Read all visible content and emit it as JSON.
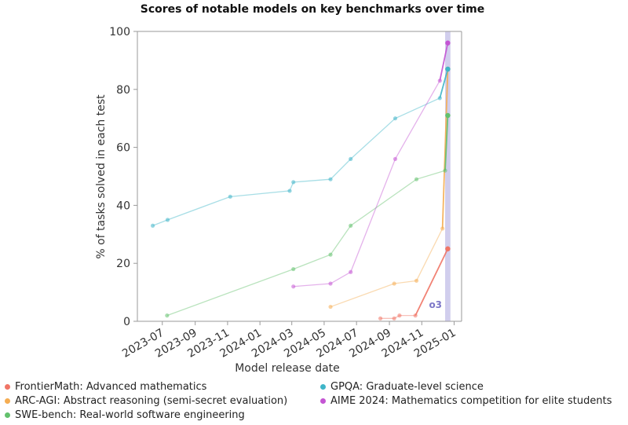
{
  "chart_data": {
    "type": "line",
    "title": "Scores of notable models on key benchmarks over time",
    "xlabel": "Model release date",
    "ylabel": "% of tasks solved in each test",
    "ylim": [
      0,
      100
    ],
    "yticks": [
      0,
      20,
      40,
      60,
      80,
      100
    ],
    "xlim": [
      "2023-05-15",
      "2025-01-15"
    ],
    "xticks": [
      "2023-07",
      "2023-09",
      "2023-11",
      "2024-01",
      "2024-03",
      "2024-05",
      "2024-07",
      "2024-09",
      "2024-11",
      "2025-01"
    ],
    "grid": false,
    "legend_position": "bottom",
    "highlight_band": {
      "x": [
        "2024-12-15",
        "2024-12-25"
      ],
      "label": "o3"
    },
    "series": [
      {
        "name": "FrontierMath: Advanced mathematics",
        "color": "#f07566",
        "x": [
          "2024-08-15",
          "2024-09-10",
          "2024-09-20",
          "2024-10-20",
          "2024-12-20"
        ],
        "y": [
          1,
          1,
          2,
          2,
          25
        ]
      },
      {
        "name": "ARC-AGI: Abstract reasoning (semi-secret evaluation)",
        "color": "#f5ad52",
        "x": [
          "2024-05-13",
          "2024-09-10",
          "2024-10-22",
          "2024-12-10",
          "2024-12-20"
        ],
        "y": [
          5,
          13,
          14,
          32,
          87
        ]
      },
      {
        "name": "SWE-bench: Real-world software engineering",
        "color": "#63c16d",
        "x": [
          "2023-07-10",
          "2024-03-04",
          "2024-05-13",
          "2024-06-20",
          "2024-10-22",
          "2024-12-15",
          "2024-12-20"
        ],
        "y": [
          2,
          18,
          23,
          33,
          49,
          52,
          71
        ]
      },
      {
        "name": "GPQA: Graduate-level science",
        "color": "#3fb5c8",
        "x": [
          "2023-06-13",
          "2023-07-11",
          "2023-11-06",
          "2024-02-26",
          "2024-03-04",
          "2024-05-13",
          "2024-06-20",
          "2024-09-12",
          "2024-12-05",
          "2024-12-20"
        ],
        "y": [
          33,
          35,
          43,
          45,
          48,
          49,
          56,
          70,
          77,
          87
        ]
      },
      {
        "name": "AIME 2024: Mathematics competition for elite students",
        "color": "#c455d3",
        "x": [
          "2024-03-04",
          "2024-05-13",
          "2024-06-20",
          "2024-09-12",
          "2024-12-05",
          "2024-12-20"
        ],
        "y": [
          12,
          13,
          17,
          56,
          83,
          96
        ]
      }
    ]
  }
}
